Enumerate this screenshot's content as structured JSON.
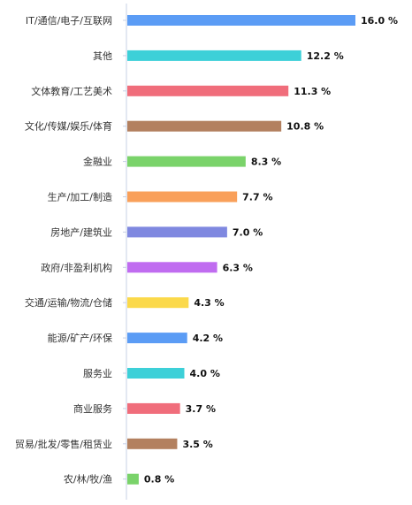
{
  "chart_data": {
    "type": "bar",
    "orientation": "horizontal",
    "categories": [
      "IT/通信/电子/互联网",
      "其他",
      "文体教育/工艺美术",
      "文化/传媒/娱乐/体育",
      "金融业",
      "生产/加工/制造",
      "房地产/建筑业",
      "政府/非盈利机构",
      "交通/运输/物流/仓储",
      "能源/矿产/环保",
      "服务业",
      "商业服务",
      "贸易/批发/零售/租赁业",
      "农/林/牧/渔"
    ],
    "values": [
      16.0,
      12.2,
      11.3,
      10.8,
      8.3,
      7.7,
      7.0,
      6.3,
      4.3,
      4.2,
      4.0,
      3.7,
      3.5,
      0.8
    ],
    "value_labels": [
      "16.0 %",
      "12.2 %",
      "11.3 %",
      "10.8 %",
      "8.3 %",
      "7.7 %",
      "7.0 %",
      "6.3 %",
      "4.3 %",
      "4.2 %",
      "4.0 %",
      "3.7 %",
      "3.5 %",
      "0.8 %"
    ],
    "colors": [
      "#5b9cf5",
      "#3dd0d8",
      "#f06d7b",
      "#b3805f",
      "#7ad36a",
      "#f9a05a",
      "#7f88e0",
      "#c06cf0",
      "#fbd94a",
      "#5b9cf5",
      "#3dd0d8",
      "#f06d7b",
      "#b3805f",
      "#7ad36a"
    ],
    "xlim": [
      0,
      16.0
    ],
    "grid": false,
    "legend": "none"
  }
}
